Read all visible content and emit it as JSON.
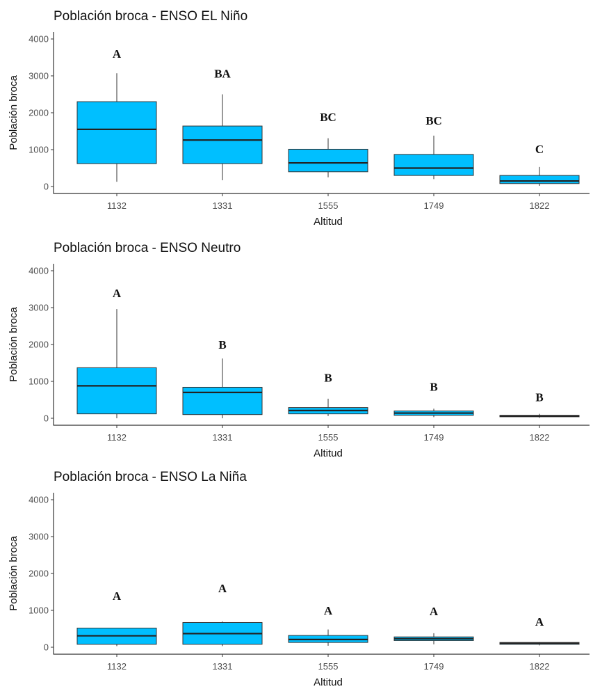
{
  "style": {
    "box_fill": "#00BFFF",
    "box_stroke": "#333333",
    "axis_color": "#333333"
  },
  "chart_data": [
    {
      "type": "boxplot",
      "title": "Población broca - ENSO EL Niño",
      "xlabel": "Altitud",
      "ylabel": "Población broca",
      "ylim": [
        0,
        4000
      ],
      "y_ticks": [
        "0",
        "1000",
        "2000",
        "3000",
        "4000"
      ],
      "categories": [
        "1132",
        "1331",
        "1555",
        "1749",
        "1822"
      ],
      "boxes": [
        {
          "whisker_low": 130,
          "q1": 620,
          "median": 1550,
          "q3": 2300,
          "whisker_high": 3070
        },
        {
          "whisker_low": 170,
          "q1": 620,
          "median": 1260,
          "q3": 1640,
          "whisker_high": 2500
        },
        {
          "whisker_low": 250,
          "q1": 400,
          "median": 640,
          "q3": 1010,
          "whisker_high": 1310
        },
        {
          "whisker_low": 200,
          "q1": 300,
          "median": 500,
          "q3": 870,
          "whisker_high": 1380
        },
        {
          "whisker_low": 20,
          "q1": 80,
          "median": 150,
          "q3": 300,
          "whisker_high": 530
        }
      ],
      "group_letters": [
        "A",
        "BA",
        "BC",
        "BC",
        "C"
      ],
      "letter_heights": [
        3600,
        3070,
        1890,
        1790,
        1020
      ]
    },
    {
      "type": "boxplot",
      "title": "Población broca - ENSO Neutro",
      "xlabel": "Altitud",
      "ylabel": "Población broca",
      "ylim": [
        0,
        4000
      ],
      "y_ticks": [
        "0",
        "1000",
        "2000",
        "3000",
        "4000"
      ],
      "categories": [
        "1132",
        "1331",
        "1555",
        "1749",
        "1822"
      ],
      "boxes": [
        {
          "whisker_low": 0,
          "q1": 120,
          "median": 880,
          "q3": 1370,
          "whisker_high": 2960
        },
        {
          "whisker_low": 0,
          "q1": 100,
          "median": 700,
          "q3": 840,
          "whisker_high": 1620
        },
        {
          "whisker_low": 60,
          "q1": 120,
          "median": 210,
          "q3": 290,
          "whisker_high": 530
        },
        {
          "whisker_low": 30,
          "q1": 80,
          "median": 140,
          "q3": 200,
          "whisker_high": 260
        },
        {
          "whisker_low": 10,
          "q1": 40,
          "median": 60,
          "q3": 80,
          "whisker_high": 120
        }
      ],
      "group_letters": [
        "A",
        "B",
        "B",
        "B",
        "B"
      ],
      "letter_heights": [
        3400,
        2000,
        1100,
        860,
        580
      ]
    },
    {
      "type": "boxplot",
      "title": "Población broca - ENSO La Niña",
      "xlabel": "Altitud",
      "ylabel": "Población broca",
      "ylim": [
        0,
        4000
      ],
      "y_ticks": [
        "0",
        "1000",
        "2000",
        "3000",
        "4000"
      ],
      "categories": [
        "1132",
        "1331",
        "1555",
        "1749",
        "1822"
      ],
      "boxes": [
        {
          "whisker_low": 30,
          "q1": 80,
          "median": 310,
          "q3": 520,
          "whisker_high": 520
        },
        {
          "whisker_low": 30,
          "q1": 80,
          "median": 370,
          "q3": 670,
          "whisker_high": 700
        },
        {
          "whisker_low": 40,
          "q1": 130,
          "median": 210,
          "q3": 320,
          "whisker_high": 480
        },
        {
          "whisker_low": 80,
          "q1": 180,
          "median": 230,
          "q3": 280,
          "whisker_high": 380
        },
        {
          "whisker_low": 50,
          "q1": 80,
          "median": 110,
          "q3": 130,
          "whisker_high": 140
        }
      ],
      "group_letters": [
        "A",
        "A",
        "A",
        "A",
        "A"
      ],
      "letter_heights": [
        1400,
        1600,
        1000,
        980,
        700
      ]
    }
  ]
}
